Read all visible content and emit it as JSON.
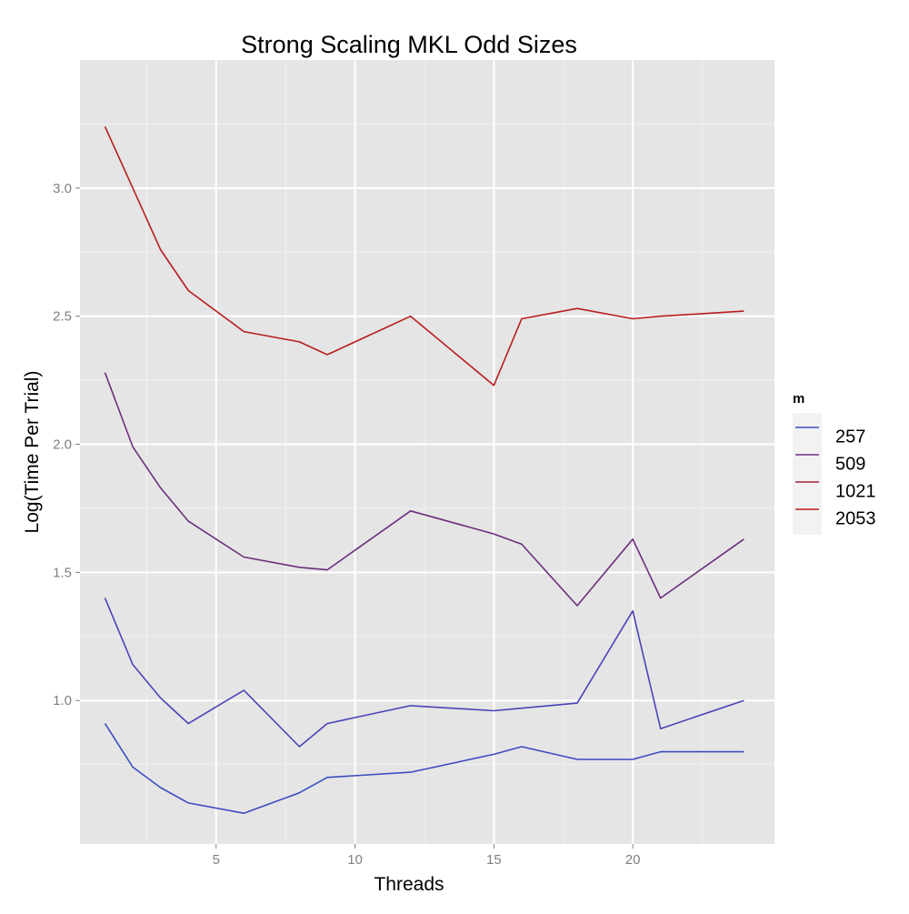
{
  "chart_data": {
    "type": "line",
    "title": "Strong Scaling MKL Odd Sizes",
    "xlabel": "Threads",
    "ylabel": "Log(Time Per Trial)",
    "xlim": [
      0.1,
      25.1
    ],
    "ylim": [
      0.44,
      3.5
    ],
    "x_ticks": [
      5,
      10,
      15,
      20
    ],
    "y_ticks": [
      1.0,
      1.5,
      2.0,
      2.5,
      3.0
    ],
    "x_tick_labels": [
      "5",
      "10",
      "15",
      "20"
    ],
    "y_tick_labels": [
      "1.0",
      "1.5",
      "2.0",
      "2.5",
      "3.0"
    ],
    "grid": true,
    "legend": {
      "title": "m",
      "position": "right"
    },
    "series": [
      {
        "name": "257",
        "color": "#3b4cc0",
        "x": [
          1,
          2,
          3,
          4,
          6,
          8,
          9,
          12,
          15,
          16,
          18,
          20,
          21,
          24
        ],
        "y": [
          0.91,
          0.74,
          0.66,
          0.6,
          0.56,
          0.64,
          0.7,
          0.72,
          0.79,
          0.82,
          0.77,
          0.77,
          0.8,
          0.8
        ]
      },
      {
        "name": "509",
        "color": "#4a44b8",
        "x": [
          1,
          2,
          3,
          4,
          6,
          8,
          9,
          12,
          15,
          16,
          18,
          20,
          21,
          24
        ],
        "y": [
          1.4,
          1.14,
          1.01,
          0.91,
          1.04,
          0.82,
          0.91,
          0.98,
          0.96,
          0.97,
          0.99,
          1.35,
          0.89,
          1.0
        ]
      },
      {
        "name": "1021",
        "color": "#6d2e7e",
        "x": [
          1,
          2,
          3,
          4,
          6,
          8,
          9,
          12,
          15,
          16,
          18,
          20,
          21,
          24
        ],
        "y": [
          2.28,
          1.99,
          1.83,
          1.7,
          1.56,
          1.52,
          1.51,
          1.74,
          1.65,
          1.61,
          1.37,
          1.63,
          1.4,
          1.63
        ]
      },
      {
        "name": "2053",
        "color": "#b81d1d",
        "x": [
          1,
          2,
          3,
          4,
          6,
          8,
          9,
          12,
          15,
          16,
          18,
          20,
          21,
          24
        ],
        "y": [
          3.24,
          3.0,
          2.76,
          2.6,
          2.44,
          2.4,
          2.35,
          2.5,
          2.23,
          2.49,
          2.53,
          2.49,
          2.5,
          2.52
        ]
      }
    ]
  },
  "legend_colors": [
    "#3b4cc0",
    "#6a2e85",
    "#a3203a",
    "#c01a1a"
  ]
}
